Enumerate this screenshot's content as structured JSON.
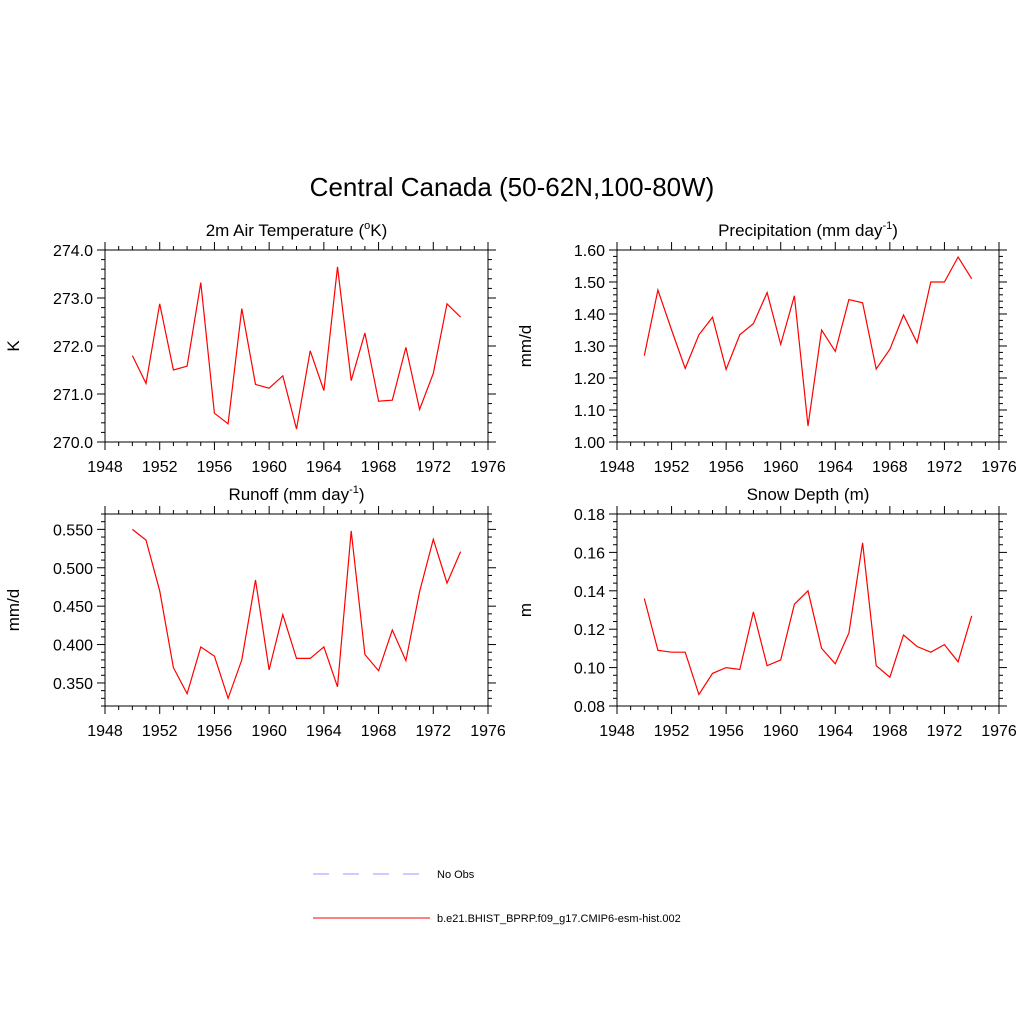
{
  "title": "Central Canada (50-62N,100-80W)",
  "colors": {
    "model": "#ff0000",
    "obs": "#9999ff",
    "axis": "#000000"
  },
  "legend": {
    "obs_label": "No Obs",
    "model_label": "b.e21.BHIST_BPRP.f09_g17.CMIP6-esm-hist.002"
  },
  "chart_data": [
    {
      "type": "line",
      "title": "2m Air Temperature (",
      "title_sup": "o",
      "title_after": "K)",
      "ylabel": "K",
      "xlim": [
        1948,
        1976
      ],
      "ylim": [
        270,
        274
      ],
      "xticks": [
        1948,
        1952,
        1956,
        1960,
        1964,
        1968,
        1972,
        1976
      ],
      "yticks": [
        270,
        271,
        272,
        273,
        274
      ],
      "ytick_labels": [
        "270.0",
        "271.0",
        "272.0",
        "273.0",
        "274.0"
      ],
      "x": [
        1950,
        1951,
        1952,
        1953,
        1954,
        1955,
        1956,
        1957,
        1958,
        1959,
        1960,
        1961,
        1962,
        1963,
        1964,
        1965,
        1966,
        1967,
        1968,
        1969,
        1970,
        1971,
        1972,
        1973,
        1974
      ],
      "series": [
        {
          "values": [
            271.8,
            271.22,
            272.88,
            271.5,
            271.58,
            273.32,
            270.6,
            270.38,
            272.78,
            271.2,
            271.12,
            271.38,
            270.27,
            271.9,
            271.07,
            273.65,
            271.28,
            272.27,
            270.85,
            270.87,
            271.97,
            270.68,
            271.43,
            272.88,
            272.6
          ]
        }
      ]
    },
    {
      "type": "line",
      "title": "Precipitation (mm day",
      "title_sup": "-1",
      "title_after": ")",
      "ylabel": "mm/d",
      "xlim": [
        1948,
        1976
      ],
      "ylim": [
        1.0,
        1.6
      ],
      "xticks": [
        1948,
        1952,
        1956,
        1960,
        1964,
        1968,
        1972,
        1976
      ],
      "yticks": [
        1.0,
        1.1,
        1.2,
        1.3,
        1.4,
        1.5,
        1.6
      ],
      "ytick_labels": [
        "1.00",
        "1.10",
        "1.20",
        "1.30",
        "1.40",
        "1.50",
        "1.60"
      ],
      "x": [
        1950,
        1951,
        1952,
        1953,
        1954,
        1955,
        1956,
        1957,
        1958,
        1959,
        1960,
        1961,
        1962,
        1963,
        1964,
        1965,
        1966,
        1967,
        1968,
        1969,
        1970,
        1971,
        1972,
        1973,
        1974
      ],
      "series": [
        {
          "values": [
            1.27,
            1.475,
            1.35,
            1.23,
            1.335,
            1.39,
            1.227,
            1.335,
            1.37,
            1.467,
            1.305,
            1.457,
            1.05,
            1.35,
            1.283,
            1.445,
            1.435,
            1.228,
            1.29,
            1.397,
            1.31,
            1.5,
            1.5,
            1.578,
            1.51
          ]
        }
      ]
    },
    {
      "type": "line",
      "title": "Runoff (mm day",
      "title_sup": "-1",
      "title_after": ")",
      "ylabel": "mm/d",
      "xlim": [
        1948,
        1976
      ],
      "ylim": [
        0.32,
        0.57
      ],
      "xticks": [
        1948,
        1952,
        1956,
        1960,
        1964,
        1968,
        1972,
        1976
      ],
      "yticks": [
        0.35,
        0.4,
        0.45,
        0.5,
        0.55
      ],
      "ytick_labels": [
        "0.350",
        "0.400",
        "0.450",
        "0.500",
        "0.550"
      ],
      "x": [
        1950,
        1951,
        1952,
        1953,
        1954,
        1955,
        1956,
        1957,
        1958,
        1959,
        1960,
        1961,
        1962,
        1963,
        1964,
        1965,
        1966,
        1967,
        1968,
        1969,
        1970,
        1971,
        1972,
        1973,
        1974
      ],
      "series": [
        {
          "values": [
            0.55,
            0.536,
            0.47,
            0.37,
            0.336,
            0.397,
            0.385,
            0.33,
            0.38,
            0.484,
            0.367,
            0.439,
            0.382,
            0.382,
            0.397,
            0.345,
            0.548,
            0.387,
            0.366,
            0.419,
            0.379,
            0.469,
            0.537,
            0.48,
            0.521
          ]
        }
      ]
    },
    {
      "type": "line",
      "title": "Snow Depth (m)",
      "title_sup": "",
      "title_after": "",
      "ylabel": "m",
      "xlim": [
        1948,
        1976
      ],
      "ylim": [
        0.08,
        0.18
      ],
      "xticks": [
        1948,
        1952,
        1956,
        1960,
        1964,
        1968,
        1972,
        1976
      ],
      "yticks": [
        0.08,
        0.1,
        0.12,
        0.14,
        0.16,
        0.18
      ],
      "ytick_labels": [
        "0.08",
        "0.10",
        "0.12",
        "0.14",
        "0.16",
        "0.18"
      ],
      "x": [
        1950,
        1951,
        1952,
        1953,
        1954,
        1955,
        1956,
        1957,
        1958,
        1959,
        1960,
        1961,
        1962,
        1963,
        1964,
        1965,
        1966,
        1967,
        1968,
        1969,
        1970,
        1971,
        1972,
        1973,
        1974
      ],
      "series": [
        {
          "values": [
            0.136,
            0.109,
            0.108,
            0.108,
            0.086,
            0.097,
            0.1,
            0.099,
            0.129,
            0.101,
            0.104,
            0.133,
            0.14,
            0.11,
            0.102,
            0.118,
            0.165,
            0.101,
            0.095,
            0.117,
            0.111,
            0.108,
            0.112,
            0.103,
            0.127
          ]
        }
      ]
    }
  ]
}
